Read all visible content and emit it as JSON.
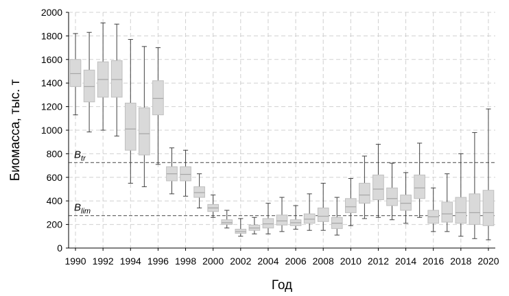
{
  "chart_data": {
    "type": "boxplot",
    "xlabel": "Год",
    "ylabel": "Биомасса, тыс. т",
    "ylim": [
      0,
      2000
    ],
    "yticks": [
      0,
      200,
      400,
      600,
      800,
      1000,
      1200,
      1400,
      1600,
      1800,
      2000
    ],
    "xlim": [
      1990,
      2020
    ],
    "xticks": [
      1990,
      1992,
      1994,
      1996,
      1998,
      2000,
      2002,
      2004,
      2006,
      2008,
      2010,
      2012,
      2014,
      2016,
      2018,
      2020
    ],
    "grid": true,
    "colors": {
      "box_fill": "#d9d9d9",
      "box_edge": "#bfbfbf",
      "whisker": "#404040",
      "ref_line": "#595959",
      "grid": "#d0d0d0"
    },
    "reference_lines": [
      {
        "label": "B",
        "subscript": "tr",
        "value": 725
      },
      {
        "label": "B",
        "subscript": "lim",
        "value": 275
      }
    ],
    "boxes": [
      {
        "year": 1990,
        "min": 1130,
        "q1": 1370,
        "median": 1480,
        "q3": 1600,
        "max": 1820
      },
      {
        "year": 1991,
        "min": 985,
        "q1": 1240,
        "median": 1370,
        "q3": 1510,
        "max": 1830
      },
      {
        "year": 1992,
        "min": 1000,
        "q1": 1280,
        "median": 1430,
        "q3": 1580,
        "max": 1910
      },
      {
        "year": 1993,
        "min": 950,
        "q1": 1280,
        "median": 1430,
        "q3": 1590,
        "max": 1900
      },
      {
        "year": 1994,
        "min": 550,
        "q1": 830,
        "median": 1010,
        "q3": 1230,
        "max": 1770
      },
      {
        "year": 1995,
        "min": 520,
        "q1": 790,
        "median": 970,
        "q3": 1190,
        "max": 1710
      },
      {
        "year": 1996,
        "min": 710,
        "q1": 1130,
        "median": 1270,
        "q3": 1420,
        "max": 1700
      },
      {
        "year": 1997,
        "min": 460,
        "q1": 570,
        "median": 630,
        "q3": 690,
        "max": 850
      },
      {
        "year": 1998,
        "min": 440,
        "q1": 570,
        "median": 625,
        "q3": 690,
        "max": 830
      },
      {
        "year": 1999,
        "min": 340,
        "q1": 430,
        "median": 470,
        "q3": 520,
        "max": 630
      },
      {
        "year": 2000,
        "min": 260,
        "q1": 310,
        "median": 340,
        "q3": 370,
        "max": 450
      },
      {
        "year": 2001,
        "min": 170,
        "q1": 200,
        "median": 215,
        "q3": 240,
        "max": 320
      },
      {
        "year": 2002,
        "min": 100,
        "q1": 125,
        "median": 140,
        "q3": 160,
        "max": 250
      },
      {
        "year": 2003,
        "min": 120,
        "q1": 150,
        "median": 170,
        "q3": 195,
        "max": 260
      },
      {
        "year": 2004,
        "min": 120,
        "q1": 170,
        "median": 205,
        "q3": 250,
        "max": 380
      },
      {
        "year": 2005,
        "min": 140,
        "q1": 195,
        "median": 230,
        "q3": 280,
        "max": 430
      },
      {
        "year": 2006,
        "min": 160,
        "q1": 190,
        "median": 215,
        "q3": 240,
        "max": 360
      },
      {
        "year": 2007,
        "min": 150,
        "q1": 210,
        "median": 245,
        "q3": 290,
        "max": 460
      },
      {
        "year": 2008,
        "min": 150,
        "q1": 225,
        "median": 270,
        "q3": 340,
        "max": 550
      },
      {
        "year": 2009,
        "min": 110,
        "q1": 165,
        "median": 210,
        "q3": 260,
        "max": 430
      },
      {
        "year": 2010,
        "min": 190,
        "q1": 300,
        "median": 350,
        "q3": 420,
        "max": 590
      },
      {
        "year": 2011,
        "min": 250,
        "q1": 380,
        "median": 450,
        "q3": 550,
        "max": 780
      },
      {
        "year": 2012,
        "min": 260,
        "q1": 410,
        "median": 500,
        "q3": 620,
        "max": 880
      },
      {
        "year": 2013,
        "min": 240,
        "q1": 360,
        "median": 420,
        "q3": 510,
        "max": 720
      },
      {
        "year": 2014,
        "min": 210,
        "q1": 320,
        "median": 380,
        "q3": 450,
        "max": 640
      },
      {
        "year": 2015,
        "min": 260,
        "q1": 420,
        "median": 510,
        "q3": 620,
        "max": 890
      },
      {
        "year": 2016,
        "min": 140,
        "q1": 210,
        "median": 265,
        "q3": 320,
        "max": 510
      },
      {
        "year": 2017,
        "min": 140,
        "q1": 220,
        "median": 290,
        "q3": 390,
        "max": 630
      },
      {
        "year": 2018,
        "min": 100,
        "q1": 210,
        "median": 300,
        "q3": 430,
        "max": 800
      },
      {
        "year": 2019,
        "min": 80,
        "q1": 200,
        "median": 300,
        "q3": 460,
        "max": 980
      },
      {
        "year": 2020,
        "min": 70,
        "q1": 190,
        "median": 300,
        "q3": 490,
        "max": 1180
      }
    ]
  }
}
